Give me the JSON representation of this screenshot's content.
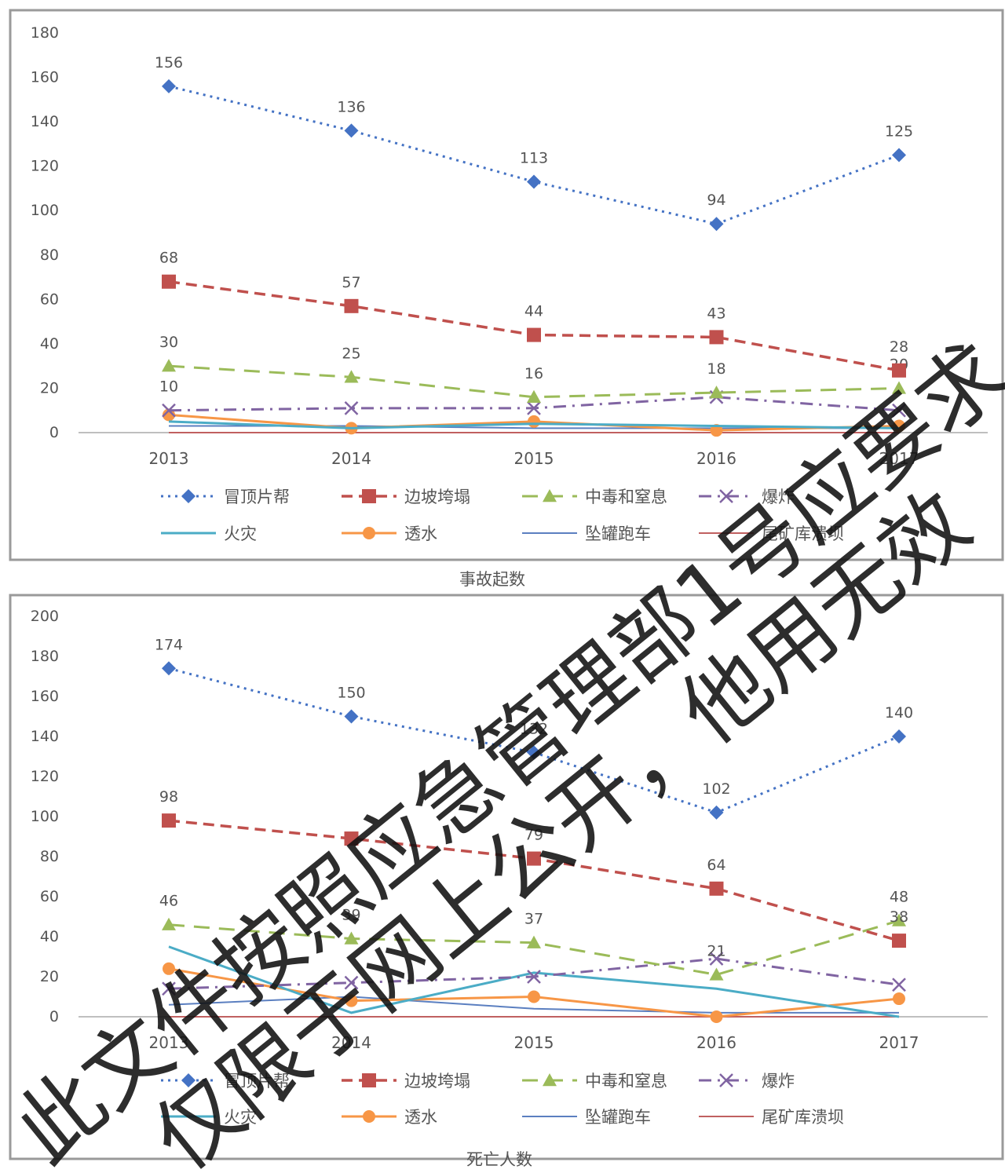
{
  "colors": {
    "冒顶片帮": "#4472c4",
    "边坡垮塌": "#c0504d",
    "中毒和窒息": "#9bbb59",
    "爆炸": "#8064a2",
    "火灾": "#4bacc6",
    "透水": "#f79646",
    "坠罐跑车": "#5b7fc0",
    "尾矿库溃坝": "#c06060"
  },
  "watermark": {
    "line1": "此文件按照应急管理部1号应要求",
    "line2": "仅限于网上公开，他用无效"
  },
  "chart_data": [
    {
      "type": "line",
      "title": "",
      "caption": "事故起数",
      "xlabel": "",
      "ylabel": "",
      "x": [
        "2013",
        "2014",
        "2015",
        "2016",
        "2017"
      ],
      "ylim": [
        0,
        180
      ],
      "yticks": [
        "0",
        "20",
        "40",
        "60",
        "80",
        "100",
        "120",
        "140",
        "160",
        "180"
      ],
      "legend": "bottom",
      "series": [
        {
          "name": "冒顶片帮",
          "values": [
            156,
            136,
            113,
            94,
            125
          ],
          "labels": [
            "156",
            "136",
            "113",
            "94",
            "125"
          ]
        },
        {
          "name": "边坡垮塌",
          "values": [
            68,
            57,
            44,
            43,
            28
          ],
          "labels": [
            "68",
            "57",
            "44",
            "43",
            "28"
          ]
        },
        {
          "name": "中毒和窒息",
          "values": [
            30,
            25,
            16,
            18,
            20
          ],
          "labels": [
            "30",
            "25",
            "16",
            "18",
            "20"
          ]
        },
        {
          "name": "爆炸",
          "values": [
            10,
            11,
            11,
            16,
            10
          ],
          "labels": [
            "10",
            "",
            "",
            "",
            ""
          ]
        },
        {
          "name": "火灾",
          "values": [
            5,
            2,
            4,
            3,
            2
          ],
          "labels": [
            "",
            "",
            "",
            "",
            ""
          ]
        },
        {
          "name": "透水",
          "values": [
            8,
            2,
            5,
            1,
            3
          ],
          "labels": [
            "",
            "",
            "",
            "",
            ""
          ]
        },
        {
          "name": "坠罐跑车",
          "values": [
            3,
            3,
            2,
            2,
            2
          ],
          "labels": [
            "",
            "",
            "",
            "",
            ""
          ]
        },
        {
          "name": "尾矿库溃坝",
          "values": [
            0,
            0,
            0,
            0,
            0
          ],
          "labels": [
            "",
            "",
            "",
            "",
            ""
          ]
        }
      ]
    },
    {
      "type": "line",
      "title": "",
      "caption": "死亡人数",
      "xlabel": "",
      "ylabel": "",
      "x": [
        "2013",
        "2014",
        "2015",
        "2016",
        "2017"
      ],
      "ylim": [
        0,
        200
      ],
      "yticks": [
        "0",
        "20",
        "40",
        "60",
        "80",
        "100",
        "120",
        "140",
        "160",
        "180",
        "200"
      ],
      "legend": "bottom",
      "series": [
        {
          "name": "冒顶片帮",
          "values": [
            174,
            150,
            132,
            102,
            140
          ],
          "labels": [
            "174",
            "150",
            "132",
            "102",
            "140"
          ]
        },
        {
          "name": "边坡垮塌",
          "values": [
            98,
            89,
            79,
            64,
            38
          ],
          "labels": [
            "98",
            "",
            "79",
            "64",
            "38"
          ]
        },
        {
          "name": "中毒和窒息",
          "values": [
            46,
            39,
            37,
            21,
            48
          ],
          "labels": [
            "46",
            "39",
            "37",
            "21",
            "48"
          ]
        },
        {
          "name": "爆炸",
          "values": [
            14,
            17,
            20,
            29,
            16
          ],
          "labels": [
            "",
            "",
            "",
            "",
            ""
          ]
        },
        {
          "name": "火灾",
          "values": [
            35,
            2,
            22,
            14,
            0
          ],
          "labels": [
            "",
            "",
            "",
            "",
            ""
          ]
        },
        {
          "name": "透水",
          "values": [
            24,
            8,
            10,
            0,
            9
          ],
          "labels": [
            "",
            "",
            "",
            "",
            ""
          ]
        },
        {
          "name": "坠罐跑车",
          "values": [
            6,
            10,
            4,
            2,
            2
          ],
          "labels": [
            "",
            "",
            "",
            "",
            ""
          ]
        },
        {
          "name": "尾矿库溃坝",
          "values": [
            0,
            0,
            0,
            0,
            0
          ],
          "labels": [
            "",
            "",
            "",
            "",
            ""
          ]
        }
      ]
    }
  ]
}
